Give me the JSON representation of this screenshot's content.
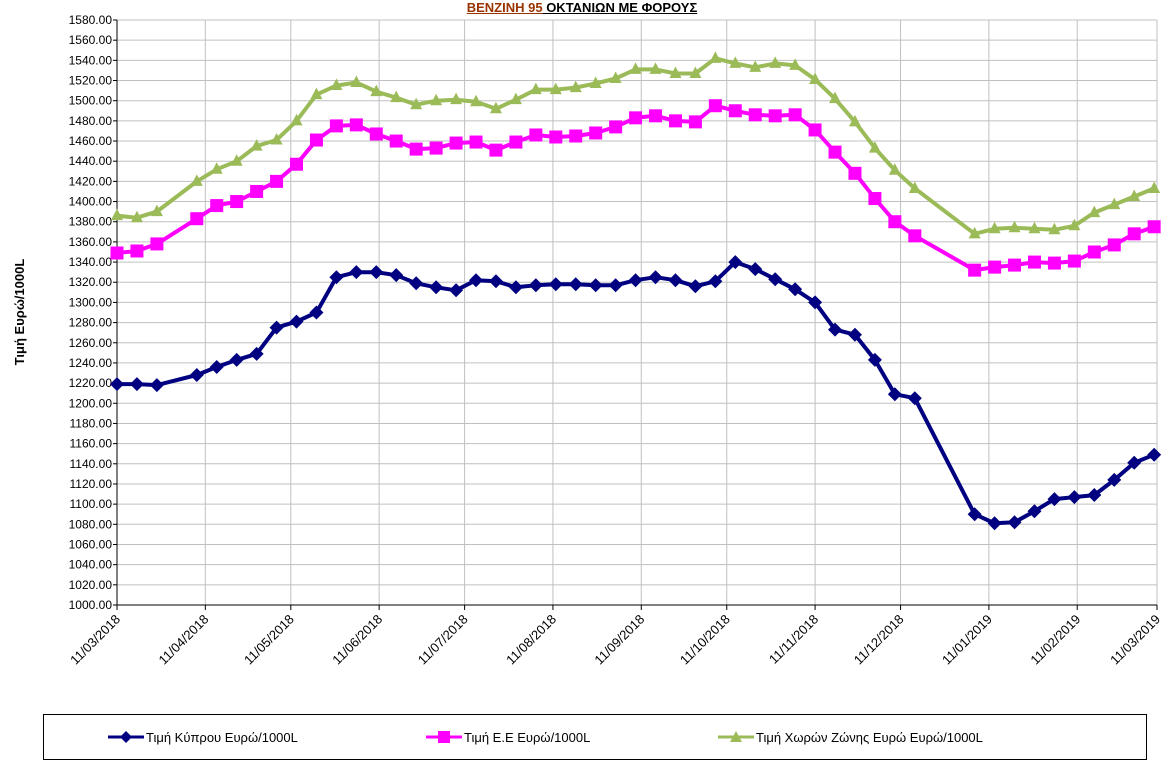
{
  "chart_data": {
    "type": "line",
    "title_part1": "ΒΕΝΖΙΝΗ 95",
    "title_part2": " ΟΚΤΑΝΙΩΝ ΜΕ ΦΟΡΟΥΣ",
    "ylabel": "Τιμή Ευρώ/1000L",
    "ylim": [
      1000,
      1580
    ],
    "ytick_step": 20,
    "xlim": [
      "2018-03-11",
      "2019-03-11"
    ],
    "x_tick_labels": [
      "11/03/2018",
      "11/04/2018",
      "11/05/2018",
      "11/06/2018",
      "11/07/2018",
      "11/08/2018",
      "11/09/2018",
      "11/10/2018",
      "11/11/2018",
      "11/12/2018",
      "11/01/2019",
      "11/02/2019",
      "11/03/2019"
    ],
    "x": [
      "2018-03-11",
      "2018-03-18",
      "2018-03-25",
      "2018-04-08",
      "2018-04-15",
      "2018-04-22",
      "2018-04-29",
      "2018-05-06",
      "2018-05-13",
      "2018-05-20",
      "2018-05-27",
      "2018-06-03",
      "2018-06-10",
      "2018-06-17",
      "2018-06-24",
      "2018-07-01",
      "2018-07-08",
      "2018-07-15",
      "2018-07-22",
      "2018-07-29",
      "2018-08-05",
      "2018-08-12",
      "2018-08-19",
      "2018-08-26",
      "2018-09-02",
      "2018-09-09",
      "2018-09-16",
      "2018-09-23",
      "2018-09-30",
      "2018-10-07",
      "2018-10-14",
      "2018-10-21",
      "2018-10-28",
      "2018-11-04",
      "2018-11-11",
      "2018-11-18",
      "2018-11-25",
      "2018-12-02",
      "2018-12-09",
      "2018-12-16",
      "2019-01-06",
      "2019-01-13",
      "2019-01-20",
      "2019-01-27",
      "2019-02-03",
      "2019-02-10",
      "2019-02-17",
      "2019-02-24",
      "2019-03-03",
      "2019-03-10"
    ],
    "series": [
      {
        "name": "Τιμή Κύπρου Ευρώ/1000L",
        "color": "#000080",
        "marker": "diamond",
        "values": [
          1219,
          1219,
          1218,
          1228,
          1236,
          1243,
          1249,
          1275,
          1281,
          1290,
          1325,
          1330,
          1330,
          1327,
          1319,
          1315,
          1312,
          1322,
          1321,
          1315,
          1317,
          1318,
          1318,
          1317,
          1317,
          1322,
          1325,
          1322,
          1316,
          1321,
          1340,
          1333,
          1323,
          1313,
          1300,
          1273,
          1268,
          1243,
          1209,
          1205,
          1090,
          1081,
          1082,
          1093,
          1105,
          1107,
          1109,
          1124,
          1141,
          1149
        ]
      },
      {
        "name": "Τιμή Ε.Ε Ευρώ/1000L",
        "color": "#FF00FF",
        "marker": "square",
        "values": [
          1349,
          1351,
          1358,
          1383,
          1396,
          1400,
          1410,
          1420,
          1437,
          1461,
          1475,
          1476,
          1467,
          1460,
          1452,
          1453,
          1458,
          1459,
          1451,
          1459,
          1466,
          1464,
          1465,
          1468,
          1474,
          1483,
          1485,
          1480,
          1479,
          1495,
          1490,
          1486,
          1485,
          1486,
          1471,
          1449,
          1428,
          1403,
          1380,
          1366,
          1332,
          1335,
          1337,
          1340,
          1339,
          1341,
          1350,
          1357,
          1368,
          1375
        ]
      },
      {
        "name": "Τιμή Χωρών Ζώνης Ευρώ Ευρώ/1000L",
        "color": "#9BBB59",
        "marker": "triangle",
        "values": [
          1386,
          1384,
          1390,
          1420,
          1432,
          1440,
          1455,
          1461,
          1480,
          1506,
          1515,
          1518,
          1509,
          1503,
          1496,
          1500,
          1501,
          1499,
          1492,
          1501,
          1511,
          1511,
          1513,
          1517,
          1522,
          1531,
          1531,
          1527,
          1527,
          1542,
          1537,
          1533,
          1537,
          1535,
          1521,
          1502,
          1479,
          1453,
          1431,
          1413,
          1368,
          1373,
          1374,
          1373,
          1372,
          1376,
          1389,
          1397,
          1405,
          1413
        ]
      }
    ]
  }
}
